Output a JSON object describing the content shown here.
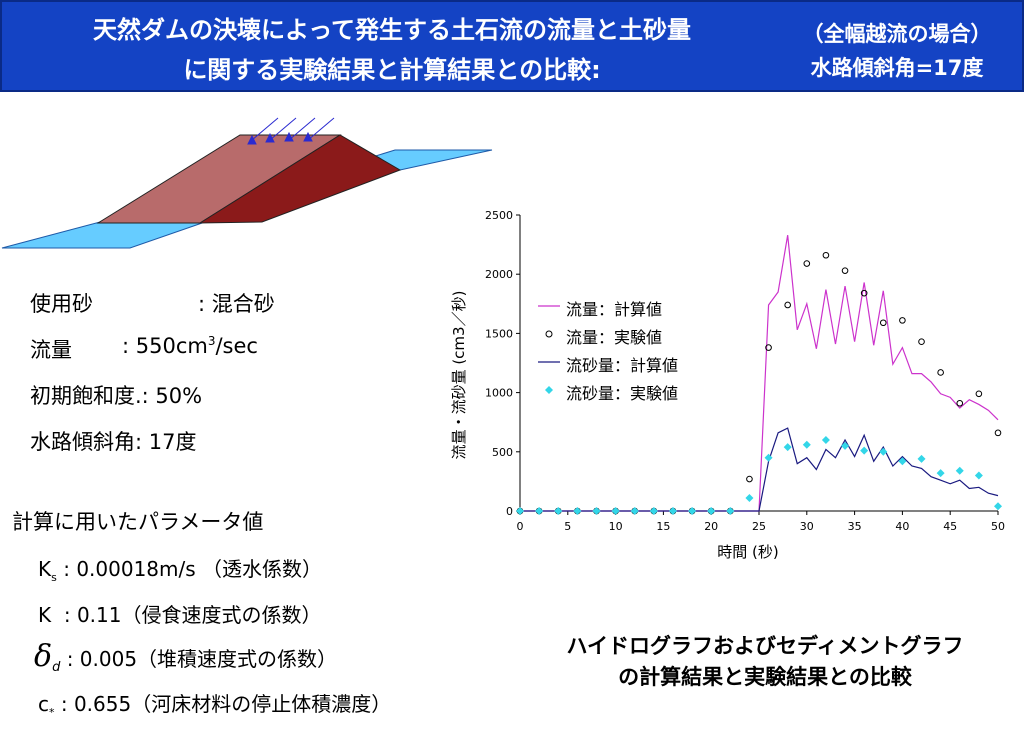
{
  "header": {
    "title_line1": "天然ダムの決壊によって発生する土石流の流量と土砂量",
    "title_line2": "に関する実験結果と計算結果との比較:",
    "condition_line1": "（全幅越流の場合）",
    "condition_line2": "水路傾斜角=17度"
  },
  "conditions": {
    "sand_label": "使用砂",
    "sand_value": ": 混合砂",
    "flow_label": "流量",
    "flow_value": ": 550cm",
    "flow_sup": "3",
    "flow_unit": "/sec",
    "saturation": "初期飽和度.: 50%",
    "slope": "水路傾斜角: 17度"
  },
  "parameters": {
    "heading": "計算に用いたパラメータ値",
    "ks_symbol": "K",
    "ks_sub": "s",
    "ks_value": ": 0.00018m/s （透水係数）",
    "k_symbol": "K",
    "k_value": ": 0.11（侵食速度式の係数）",
    "delta_symbol": "δ",
    "delta_sub": "d",
    "delta_value": ": 0.005（堆積速度式の係数）",
    "c_symbol": "c",
    "c_sub": "*",
    "c_value": ": 0.655（河床材料の停止体積濃度）"
  },
  "caption": {
    "line1": "ハイドログラフおよびセディメントグラフ",
    "line2": "の計算結果と実験結果との比較"
  },
  "chart_data": {
    "type": "line",
    "xlabel": "時間 (秒)",
    "ylabel": "流量・流砂量 (cm3／秒)",
    "xlim": [
      0,
      50
    ],
    "ylim": [
      0,
      2500
    ],
    "xticks": [
      0,
      5,
      10,
      15,
      20,
      25,
      30,
      35,
      40,
      45,
      50
    ],
    "yticks": [
      0,
      500,
      1000,
      1500,
      2000,
      2500
    ],
    "legend_position": "top-left inside",
    "series": [
      {
        "name": "流量：計算値",
        "style": "line",
        "color": "#cc33cc",
        "x": [
          0,
          22,
          24,
          25,
          26,
          27,
          28,
          29,
          30,
          31,
          32,
          33,
          34,
          35,
          36,
          37,
          38,
          39,
          40,
          41,
          42,
          43,
          44,
          45,
          46,
          47,
          48,
          49,
          50
        ],
        "y": [
          0,
          0,
          0,
          0,
          1740,
          1850,
          2330,
          1530,
          1750,
          1370,
          1870,
          1410,
          1900,
          1430,
          1930,
          1400,
          1860,
          1240,
          1380,
          1160,
          1160,
          1090,
          990,
          960,
          870,
          940,
          900,
          850,
          770
        ]
      },
      {
        "name": "流量：実験値",
        "style": "open-circle",
        "color": "#000000",
        "x": [
          0,
          2,
          4,
          6,
          8,
          10,
          12,
          14,
          16,
          18,
          20,
          22,
          24,
          26,
          28,
          30,
          32,
          34,
          36,
          38,
          40,
          42,
          44,
          46,
          48,
          50
        ],
        "y": [
          0,
          0,
          0,
          0,
          0,
          0,
          0,
          0,
          0,
          0,
          0,
          0,
          270,
          1380,
          1740,
          2090,
          2160,
          2030,
          1840,
          1590,
          1610,
          1430,
          1170,
          910,
          990,
          660
        ]
      },
      {
        "name": "流砂量：計算値",
        "style": "line",
        "color": "#1a1a80",
        "x": [
          0,
          22,
          24,
          25,
          26,
          27,
          28,
          29,
          30,
          31,
          32,
          33,
          34,
          35,
          36,
          37,
          38,
          39,
          40,
          41,
          42,
          43,
          44,
          45,
          46,
          47,
          48,
          49,
          50
        ],
        "y": [
          0,
          0,
          0,
          0,
          420,
          660,
          700,
          400,
          450,
          350,
          520,
          450,
          600,
          460,
          640,
          420,
          540,
          380,
          460,
          380,
          360,
          290,
          260,
          230,
          260,
          190,
          200,
          150,
          130
        ]
      },
      {
        "name": "流砂量：実験値",
        "style": "filled-diamond",
        "color": "#33d6e8",
        "x": [
          0,
          2,
          4,
          6,
          8,
          10,
          12,
          14,
          16,
          18,
          20,
          22,
          24,
          26,
          28,
          30,
          32,
          34,
          36,
          38,
          40,
          42,
          44,
          46,
          48,
          50
        ],
        "y": [
          0,
          0,
          0,
          0,
          0,
          0,
          0,
          0,
          0,
          0,
          0,
          0,
          110,
          450,
          540,
          560,
          600,
          550,
          510,
          500,
          420,
          440,
          320,
          340,
          300,
          40
        ]
      }
    ]
  },
  "colors": {
    "header_bg": "#1443c4",
    "dam_left": "#b86b6b",
    "dam_right": "#8b1a1a",
    "water": "#66ccff"
  }
}
